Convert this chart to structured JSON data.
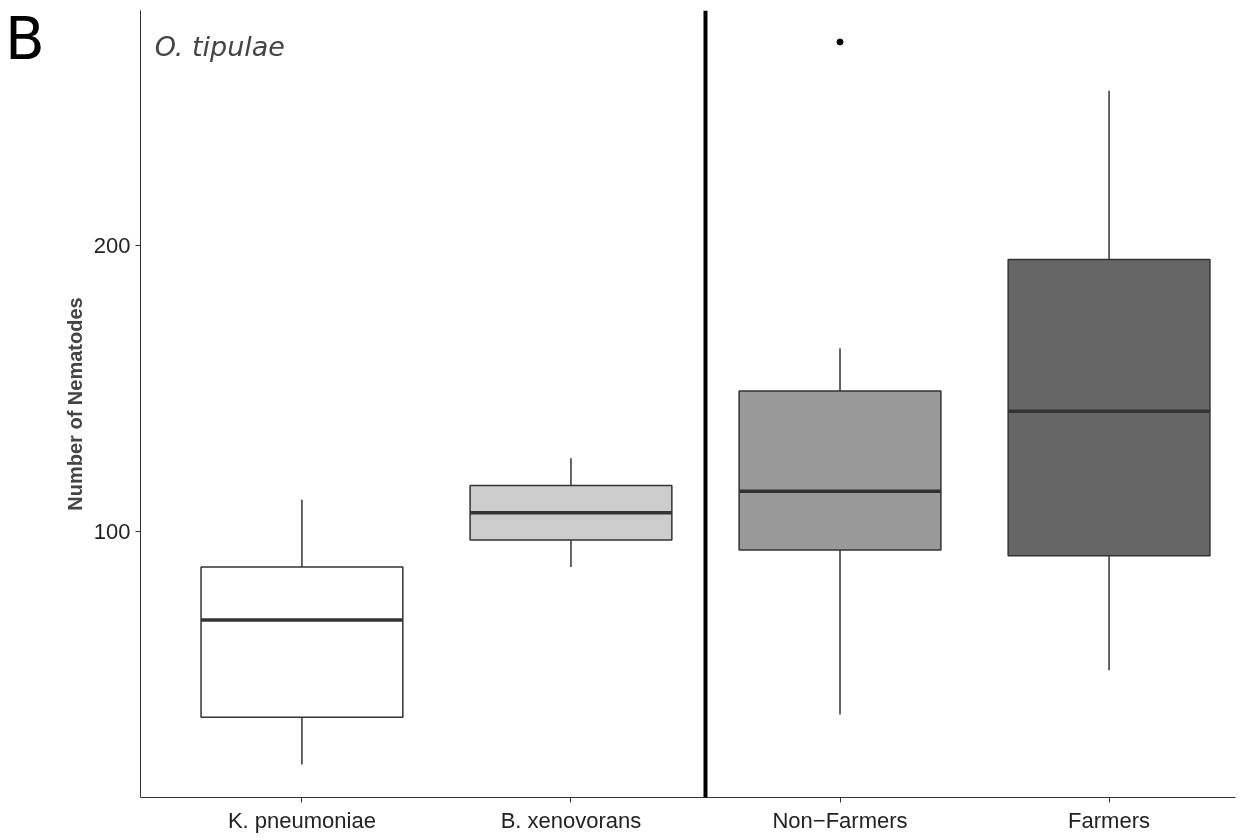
{
  "chart_data": {
    "type": "box",
    "ylabel": "Number of Nematodes",
    "categories": [
      "K. pneumoniae",
      "B. xenovorans",
      "Non−Farmers",
      "Farmers"
    ],
    "boxes": [
      {
        "low": 18.5,
        "q1": 35,
        "median": 69,
        "q3": 87.5,
        "high": 111
      },
      {
        "low": 87.5,
        "q1": 97,
        "median": 106.5,
        "q3": 116,
        "high": 125.5
      },
      {
        "low": 36,
        "q1": 93.5,
        "median": 114,
        "q3": 149,
        "high": 164,
        "outliers": [
          271
        ]
      },
      {
        "low": 51.5,
        "q1": 91.5,
        "median": 142,
        "q3": 195,
        "high": 254
      }
    ],
    "colors": [
      "#ffffff",
      "#cccccc",
      "#999999",
      "#666666"
    ],
    "ylim": [
      7,
      282
    ],
    "yticks": [
      100,
      200
    ],
    "grid": false,
    "annotations": [
      "B",
      "O. tipulae"
    ]
  }
}
